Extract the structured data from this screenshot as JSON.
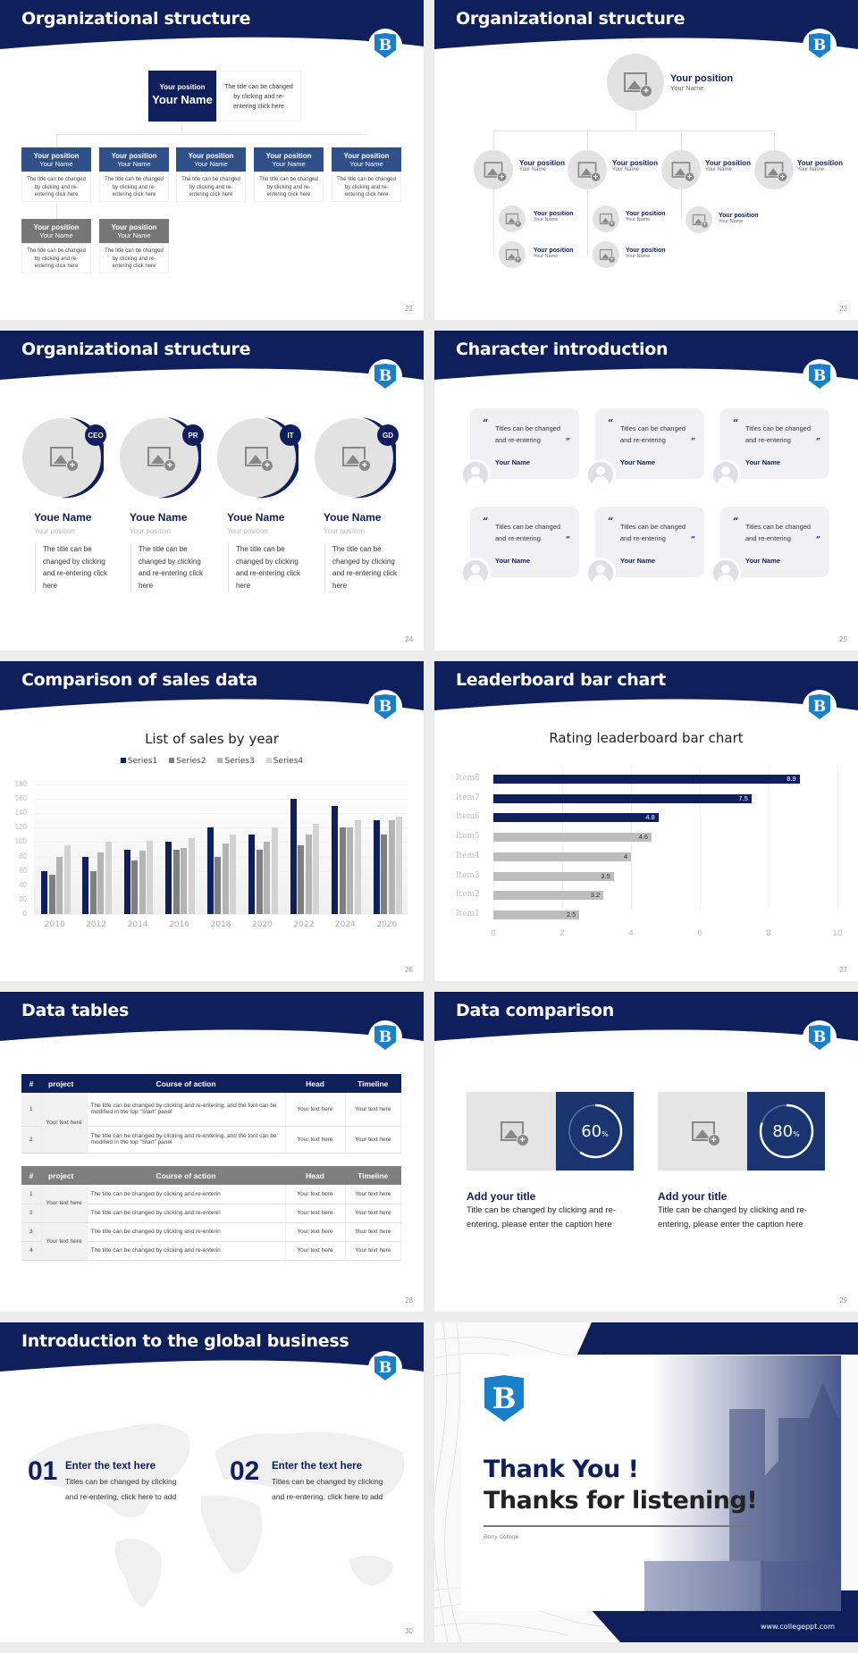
{
  "brand": {
    "navy": "#0f1f5c",
    "logo_blue": "#1a7fc9",
    "logo_letter": "B"
  },
  "slides": {
    "s22": {
      "title": "Organizational structure",
      "page": "22",
      "top": {
        "position": "Your position",
        "name": "Your Name",
        "desc": "The title can be changed by clicking and re-entering click here"
      },
      "row1": [
        {
          "position": "Your position",
          "name": "Your Name",
          "desc": "The title can be changed by clicking and re-entering click here"
        },
        {
          "position": "Your position",
          "name": "Your Name",
          "desc": "The title can be changed by clicking and re-entering click here"
        },
        {
          "position": "Your position",
          "name": "Your Name",
          "desc": "The title can be changed by clicking and re-entering click here"
        },
        {
          "position": "Your position",
          "name": "Your Name",
          "desc": "The title can be changed by clicking and re-entering click here"
        },
        {
          "position": "Your position",
          "name": "Your Name",
          "desc": "The title can be changed by clicking and re-entering click here"
        }
      ],
      "row2": [
        {
          "position": "Your position",
          "name": "Your Name",
          "desc": "The title can be changed by clicking and re-entering click here"
        },
        {
          "position": "Your position",
          "name": "Your Name",
          "desc": "The title can be changed by clicking and re-entering click here"
        }
      ]
    },
    "s23": {
      "title": "Organizational structure",
      "page": "23",
      "top": {
        "position": "Your position",
        "name": "Your Name"
      },
      "level1": [
        {
          "position": "Your position",
          "name": "Your Name"
        },
        {
          "position": "Your position",
          "name": "Your Name"
        },
        {
          "position": "Your position",
          "name": "Your Name"
        },
        {
          "position": "Your position",
          "name": "Your Name"
        }
      ],
      "level2": [
        {
          "position": "Your position",
          "name": "Your Name"
        },
        {
          "position": "Your position",
          "name": "Your Name"
        },
        {
          "position": "Your position",
          "name": "Your Name"
        },
        {
          "position": "Your position",
          "name": "Your Name"
        },
        {
          "position": "Your position",
          "name": "Your Name"
        }
      ]
    },
    "s24": {
      "title": "Organizational structure",
      "page": "24",
      "people": [
        {
          "badge": "CEO",
          "name": "Youe Name",
          "position": "Your position",
          "desc": "The title can be changed by clicking and re-entering click here"
        },
        {
          "badge": "PR",
          "name": "Youe Name",
          "position": "Your position",
          "desc": "The title can be changed by clicking and re-entering click here"
        },
        {
          "badge": "IT",
          "name": "Youe Name",
          "position": "Your position",
          "desc": "The title can be changed by clicking and re-entering click here"
        },
        {
          "badge": "GD",
          "name": "Youe Name",
          "position": "Your position",
          "desc": "The title can be changed by clicking and re-entering click here"
        }
      ]
    },
    "s25": {
      "title": "Character introduction",
      "page": "25",
      "cards": [
        {
          "quote": "Titles can be changed and re-entering",
          "name": "Your Name"
        },
        {
          "quote": "Titles can be changed and re-entering",
          "name": "Your Name"
        },
        {
          "quote": "Titles can be changed and re-entering",
          "name": "Your Name"
        },
        {
          "quote": "Titles can be changed and re-entering",
          "name": "Your Name"
        },
        {
          "quote": "Titles can be changed and re-entering",
          "name": "Your Name"
        },
        {
          "quote": "Titles can be changed and re-entering",
          "name": "Your Name"
        }
      ],
      "open_quote": "“",
      "close_quote": "”"
    },
    "s26": {
      "title": "Comparison of sales data",
      "page": "26"
    },
    "s27": {
      "title": "Leaderboard bar chart",
      "page": "27"
    },
    "s28": {
      "title": "Data tables",
      "page": "28",
      "table1": {
        "headers": [
          "#",
          "project",
          "Course of action",
          "Head",
          "Timeline"
        ],
        "project": "Your text here",
        "rows": [
          {
            "n": "1",
            "action": "The title can be changed by clicking and re-entering, and the font can be modified in the top \"Start\" panel",
            "head": "Your text here",
            "timeline": "Your text here"
          },
          {
            "n": "2",
            "action": "The title can be changed by clicking and re-entering, and the font can be modified in the top \"Start\" panel",
            "head": "Your text here",
            "timeline": "Your text here"
          }
        ]
      },
      "table2": {
        "headers": [
          "#",
          "project",
          "Course of action",
          "Head",
          "Timeline"
        ],
        "projects": [
          "Your text here",
          "Your text here"
        ],
        "rows": [
          {
            "n": "1",
            "action": "The title can be changed by clicking and re-enterin",
            "head": "Your text here",
            "timeline": "Your text here"
          },
          {
            "n": "2",
            "action": "The title can be changed by clicking and re-enterin",
            "head": "Your text here",
            "timeline": "Your text here"
          },
          {
            "n": "3",
            "action": "The title can be changed by clicking and re-enterin",
            "head": "Your text here",
            "timeline": "Your text here"
          },
          {
            "n": "4",
            "action": "The title can be changed by clicking and re-enterin",
            "head": "Your text here",
            "timeline": "Your text here"
          }
        ]
      }
    },
    "s29": {
      "title": "Data comparison",
      "page": "29",
      "items": [
        {
          "value": "60",
          "unit": "%",
          "percent": 60,
          "heading": "Add your title",
          "desc": "Title can be changed by clicking and re-entering, please enter the caption here"
        },
        {
          "value": "80",
          "unit": "%",
          "percent": 80,
          "heading": "Add your title",
          "desc": "Title can be changed by clicking and re-entering, please enter the caption here"
        }
      ]
    },
    "s30": {
      "title": "Introduction to the global business",
      "page": "30",
      "items": [
        {
          "num": "01",
          "heading": "Enter the text here",
          "desc": "Titles can be changed by clicking and re-entering, click here to add"
        },
        {
          "num": "02",
          "heading": "Enter the text here",
          "desc": "Titles can be changed by clicking and re-entering, click here to add"
        }
      ]
    },
    "s31": {
      "line1": "Thank You !",
      "line2": "Thanks for listening!",
      "college": "Berry College",
      "url": "www.collegeppt.com"
    }
  },
  "chart_data": [
    {
      "type": "bar",
      "title": "List of sales by year",
      "categories": [
        "2010",
        "2012",
        "2014",
        "2016",
        "2018",
        "2020",
        "2022",
        "2024",
        "2026"
      ],
      "series": [
        {
          "name": "Series1",
          "color": "#0f1f5c",
          "values": [
            60,
            80,
            90,
            100,
            120,
            110,
            160,
            150,
            130
          ]
        },
        {
          "name": "Series2",
          "color": "#7f7f7f",
          "values": [
            55,
            60,
            75,
            90,
            80,
            90,
            96,
            120,
            110
          ]
        },
        {
          "name": "Series3",
          "color": "#b4b4b4",
          "values": [
            80,
            86,
            88,
            92,
            98,
            100,
            110,
            120,
            130
          ]
        },
        {
          "name": "Series4",
          "color": "#d3d3d3",
          "values": [
            95,
            100,
            102,
            105,
            110,
            120,
            126,
            130,
            135
          ]
        }
      ],
      "yticks": [
        "0",
        "20",
        "40",
        "60",
        "80",
        "100",
        "120",
        "140",
        "160",
        "180"
      ],
      "ylim": [
        0,
        180
      ],
      "grid": true,
      "legend": "top"
    },
    {
      "type": "bar",
      "orientation": "horizontal",
      "title": "Rating leaderboard bar chart",
      "categories": [
        "Item8",
        "Item7",
        "Item6",
        "Item5",
        "Item4",
        "Item3",
        "Item2",
        "Item1"
      ],
      "values": [
        8.9,
        7.5,
        4.8,
        4.6,
        4,
        3.5,
        3.2,
        2.5
      ],
      "labels": [
        "8.9",
        "7.5",
        "4.8",
        "4.6",
        "4",
        "3.5",
        "3.2",
        "2.5"
      ],
      "highlight_color": "#0f1f5c",
      "base_color": "#bdbdbd",
      "xticks": [
        "0",
        "2",
        "4",
        "6",
        "8",
        "10"
      ],
      "xlim": [
        0,
        10
      ],
      "grid": true
    }
  ]
}
